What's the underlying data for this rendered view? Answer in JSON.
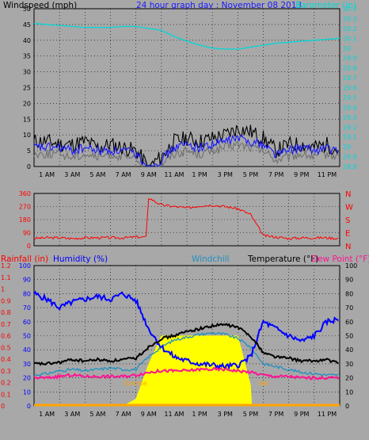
{
  "header": {
    "windspeed_label": "Windspeed (mph)",
    "title": "24 hour graph day : November 08 2013",
    "barometer_label": "Barometer (in)"
  },
  "lower_header": {
    "rainfall_label": "Rainfall (in)",
    "humidity_label": "Humidity (%)",
    "windchill_label": "Windchill",
    "temperature_label": "Temperature (°F)",
    "dewpoint_label": "Dew Point (°F)"
  },
  "annotations": {
    "sunrise": "Sunrise",
    "sunset": "Set"
  },
  "time_labels": [
    "1 AM",
    "3 AM",
    "5 AM",
    "7 AM",
    "9 AM",
    "11 AM",
    "1 PM",
    "3 PM",
    "5 PM",
    "7 PM",
    "9 PM",
    "11 PM"
  ],
  "colors": {
    "background": "#a8a8a8",
    "wind_gust": "#000000",
    "wind_avg": "#1a1aff",
    "wind_min": "#707070",
    "barometer": "#00d8d8",
    "direction": "#ff0000",
    "humidity": "#0000ff",
    "temperature": "#000000",
    "windchill": "#2090c0",
    "dewpoint": "#ff1493",
    "solar": "#ffff00",
    "rain": "#ffa500"
  },
  "chart_data": [
    {
      "type": "line",
      "title": "24 hour graph day : November 08 2013",
      "ylabel": "Windspeed (mph)",
      "y2label": "Barometer (in)",
      "ylim": [
        0,
        50
      ],
      "y2lim": [
        28.8,
        30.4
      ],
      "yticks": [
        0,
        5,
        10,
        15,
        20,
        25,
        30,
        35,
        40,
        45,
        50
      ],
      "y2ticks": [
        "28.8",
        "28.9",
        "29",
        "29.1",
        "29.2",
        "29.3",
        "29.4",
        "29.5",
        "29.6",
        "29.7",
        "29.8",
        "29.9",
        "30",
        "30.1",
        "30.2",
        "30.3",
        "30.4"
      ],
      "x": [
        0,
        1,
        2,
        3,
        4,
        5,
        6,
        7,
        8,
        9,
        10,
        11,
        12,
        13,
        14,
        15,
        16,
        17,
        18,
        19,
        20,
        21,
        22,
        23,
        24
      ],
      "series": [
        {
          "values": [
            8,
            8,
            7,
            7,
            8,
            6,
            7,
            6,
            5,
            0,
            3,
            8,
            9,
            8,
            9,
            10,
            12,
            11,
            9,
            5,
            7,
            7,
            6,
            7,
            5
          ]
        },
        {
          "values": [
            6,
            6,
            6,
            5,
            6,
            5,
            5,
            5,
            4,
            0,
            2,
            6,
            7,
            6,
            7,
            8,
            9,
            8,
            7,
            4,
            5,
            6,
            5,
            6,
            4
          ]
        },
        {
          "values": [
            4,
            4,
            4,
            3,
            4,
            3,
            4,
            3,
            2,
            0,
            1,
            4,
            5,
            4,
            5,
            6,
            7,
            6,
            5,
            2,
            3,
            4,
            3,
            4,
            3
          ]
        },
        {
          "axis": "y2",
          "values": [
            30.25,
            30.24,
            30.23,
            30.22,
            30.21,
            30.21,
            30.21,
            30.22,
            30.22,
            30.2,
            30.18,
            30.12,
            30.07,
            30.03,
            30.0,
            29.99,
            29.99,
            30.01,
            30.03,
            30.05,
            30.06,
            30.07,
            30.08,
            30.09,
            30.1
          ]
        }
      ]
    },
    {
      "type": "line",
      "yticks": [
        0,
        90,
        180,
        270,
        360
      ],
      "ylim": [
        0,
        360
      ],
      "compass_labels": [
        "N",
        "W",
        "S",
        "E",
        "N"
      ],
      "x": [
        0,
        1,
        2,
        3,
        4,
        5,
        6,
        7,
        8,
        8.8,
        9,
        10,
        11,
        12,
        13,
        14,
        15,
        16,
        17,
        18,
        19,
        20,
        21,
        22,
        23,
        24
      ],
      "series": [
        {
          "values": [
            50,
            55,
            55,
            50,
            55,
            55,
            55,
            55,
            60,
            60,
            330,
            280,
            270,
            260,
            275,
            280,
            270,
            255,
            215,
            70,
            60,
            50,
            55,
            55,
            55,
            50
          ]
        }
      ]
    },
    {
      "type": "line",
      "ylabel": "Rainfall (in)",
      "y2label": "Humidity (%)",
      "y3label": "Temperature (°F)",
      "rain_ticks": [
        "0",
        "0.1",
        "0.2",
        "0.3",
        "0.4",
        "0.5",
        "0.6",
        "0.7",
        "0.8",
        "0.9",
        "1",
        "1.1",
        "1.2"
      ],
      "humidity_ticks": [
        0,
        10,
        20,
        30,
        40,
        50,
        60,
        70,
        80,
        90,
        100
      ],
      "temp_ticks": [
        0,
        10,
        20,
        30,
        40,
        50,
        60,
        70,
        80,
        90,
        100
      ],
      "ylim": [
        0,
        100
      ],
      "x": [
        0,
        1,
        2,
        3,
        4,
        5,
        6,
        7,
        8,
        9,
        10,
        11,
        12,
        13,
        14,
        15,
        16,
        17,
        18,
        19,
        20,
        21,
        22,
        23,
        24
      ],
      "series": [
        {
          "values": [
            80,
            76,
            70,
            74,
            76,
            78,
            76,
            80,
            75,
            55,
            42,
            35,
            32,
            30,
            29,
            28,
            29,
            35,
            60,
            55,
            50,
            46,
            50,
            60,
            62
          ]
        },
        {
          "values": [
            30,
            30,
            31,
            33,
            32,
            33,
            32,
            33,
            34,
            42,
            48,
            50,
            53,
            55,
            57,
            58,
            56,
            50,
            38,
            35,
            34,
            32,
            32,
            33,
            30
          ]
        },
        {
          "values": [
            22,
            23,
            25,
            26,
            25,
            26,
            27,
            26,
            26,
            35,
            42,
            47,
            49,
            51,
            52,
            51,
            48,
            42,
            30,
            28,
            26,
            24,
            23,
            22,
            22
          ]
        },
        {
          "values": [
            20,
            20,
            21,
            22,
            21,
            21,
            21,
            21,
            22,
            24,
            25,
            25,
            25,
            26,
            26,
            26,
            25,
            24,
            22,
            21,
            21,
            20,
            20,
            20,
            20
          ]
        },
        {
          "values": [
            0,
            0,
            0,
            0,
            0,
            0,
            0,
            0,
            5,
            30,
            50,
            50,
            50,
            50,
            50,
            50,
            50,
            15,
            0,
            0,
            0,
            0,
            0,
            0,
            0
          ]
        },
        {
          "values": [
            0,
            0,
            0,
            0,
            0,
            0,
            0,
            0,
            0,
            0,
            0,
            0,
            0,
            0,
            0,
            0,
            0,
            0,
            0,
            0,
            0,
            0,
            0,
            0,
            0
          ]
        }
      ]
    }
  ]
}
